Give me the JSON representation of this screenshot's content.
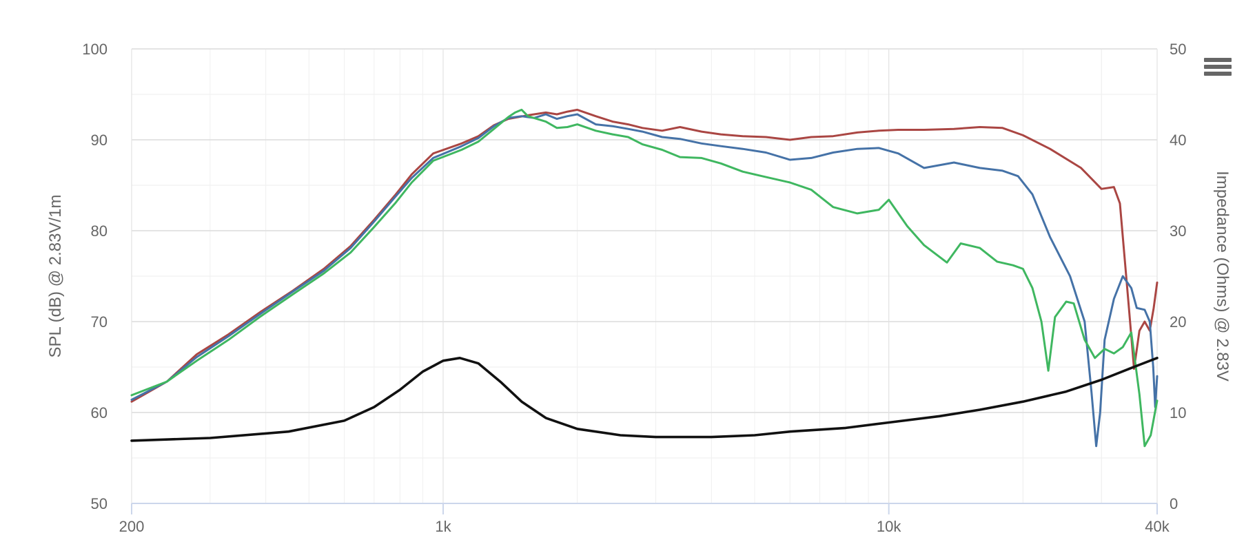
{
  "chart_data": {
    "type": "line",
    "title": "",
    "xlabel": "",
    "ylabel": "SPL (dB) @ 2.83V/1m",
    "y2label": "Impedance (Ohms) @ 2.83V",
    "x_scale": "log",
    "xlim": [
      200,
      40000
    ],
    "ylim": [
      50,
      100
    ],
    "y2lim": [
      0,
      50
    ],
    "x_ticks": [
      {
        "value": 200,
        "label": "200"
      },
      {
        "value": 1000,
        "label": "1k"
      },
      {
        "value": 10000,
        "label": "10k"
      },
      {
        "value": 40000,
        "label": "40k"
      }
    ],
    "y_ticks": [
      50,
      60,
      70,
      80,
      90,
      100
    ],
    "y2_ticks": [
      0,
      10,
      20,
      30,
      40,
      50
    ],
    "grid": true,
    "legend": "none",
    "series": [
      {
        "color": "#aa4643",
        "axis": "left",
        "points": [
          [
            200,
            61.2
          ],
          [
            240,
            63.4
          ],
          [
            280,
            66.4
          ],
          [
            330,
            68.6
          ],
          [
            390,
            71.1
          ],
          [
            460,
            73.4
          ],
          [
            540,
            75.8
          ],
          [
            620,
            78.3
          ],
          [
            700,
            81.2
          ],
          [
            780,
            83.9
          ],
          [
            850,
            86.2
          ],
          [
            950,
            88.5
          ],
          [
            1100,
            89.6
          ],
          [
            1200,
            90.4
          ],
          [
            1300,
            91.6
          ],
          [
            1400,
            92.3
          ],
          [
            1550,
            92.7
          ],
          [
            1700,
            93.0
          ],
          [
            1800,
            92.8
          ],
          [
            1900,
            93.1
          ],
          [
            2000,
            93.3
          ],
          [
            2200,
            92.6
          ],
          [
            2400,
            92.0
          ],
          [
            2600,
            91.7
          ],
          [
            2800,
            91.3
          ],
          [
            3100,
            91.0
          ],
          [
            3400,
            91.4
          ],
          [
            3800,
            90.9
          ],
          [
            4200,
            90.6
          ],
          [
            4700,
            90.4
          ],
          [
            5300,
            90.3
          ],
          [
            6000,
            90.0
          ],
          [
            6700,
            90.3
          ],
          [
            7500,
            90.4
          ],
          [
            8500,
            90.8
          ],
          [
            9500,
            91.0
          ],
          [
            10500,
            91.1
          ],
          [
            12000,
            91.1
          ],
          [
            14000,
            91.2
          ],
          [
            16000,
            91.4
          ],
          [
            18000,
            91.3
          ],
          [
            20000,
            90.5
          ],
          [
            23000,
            89.0
          ],
          [
            27000,
            86.9
          ],
          [
            30000,
            84.6
          ],
          [
            32000,
            84.8
          ],
          [
            33000,
            83.0
          ],
          [
            34500,
            72.0
          ],
          [
            35500,
            64.8
          ],
          [
            36500,
            69.0
          ],
          [
            37500,
            70.0
          ],
          [
            38500,
            69.0
          ],
          [
            39300,
            71.5
          ],
          [
            40000,
            74.3
          ]
        ]
      },
      {
        "color": "#4572a7",
        "axis": "left",
        "points": [
          [
            200,
            61.4
          ],
          [
            240,
            63.4
          ],
          [
            280,
            66.1
          ],
          [
            330,
            68.4
          ],
          [
            390,
            70.9
          ],
          [
            460,
            73.3
          ],
          [
            540,
            75.6
          ],
          [
            620,
            78.1
          ],
          [
            700,
            81.0
          ],
          [
            780,
            83.7
          ],
          [
            850,
            85.8
          ],
          [
            950,
            88.0
          ],
          [
            1100,
            89.3
          ],
          [
            1200,
            90.2
          ],
          [
            1300,
            91.5
          ],
          [
            1400,
            92.4
          ],
          [
            1500,
            92.6
          ],
          [
            1600,
            92.4
          ],
          [
            1700,
            92.8
          ],
          [
            1800,
            92.3
          ],
          [
            1900,
            92.6
          ],
          [
            2000,
            92.8
          ],
          [
            2200,
            91.7
          ],
          [
            2400,
            91.5
          ],
          [
            2600,
            91.2
          ],
          [
            2800,
            90.9
          ],
          [
            3100,
            90.3
          ],
          [
            3400,
            90.1
          ],
          [
            3800,
            89.6
          ],
          [
            4200,
            89.3
          ],
          [
            4700,
            89.0
          ],
          [
            5300,
            88.6
          ],
          [
            6000,
            87.8
          ],
          [
            6700,
            88.0
          ],
          [
            7500,
            88.6
          ],
          [
            8500,
            89.0
          ],
          [
            9500,
            89.1
          ],
          [
            10500,
            88.5
          ],
          [
            12000,
            86.9
          ],
          [
            14000,
            87.5
          ],
          [
            16000,
            86.9
          ],
          [
            18000,
            86.6
          ],
          [
            19500,
            86.0
          ],
          [
            21000,
            84.0
          ],
          [
            23000,
            79.3
          ],
          [
            25500,
            75.0
          ],
          [
            27500,
            70.0
          ],
          [
            28500,
            62.2
          ],
          [
            29200,
            56.3
          ],
          [
            29800,
            60.0
          ],
          [
            30500,
            68.0
          ],
          [
            32000,
            72.5
          ],
          [
            33500,
            75.0
          ],
          [
            35000,
            73.7
          ],
          [
            36000,
            71.5
          ],
          [
            37500,
            71.3
          ],
          [
            38500,
            70.0
          ],
          [
            39200,
            65.0
          ],
          [
            39600,
            60.6
          ],
          [
            40000,
            64.0
          ]
        ]
      },
      {
        "color": "#3fb760",
        "axis": "left",
        "points": [
          [
            200,
            61.9
          ],
          [
            240,
            63.4
          ],
          [
            280,
            65.7
          ],
          [
            330,
            68.0
          ],
          [
            390,
            70.6
          ],
          [
            460,
            73.0
          ],
          [
            540,
            75.3
          ],
          [
            620,
            77.6
          ],
          [
            700,
            80.4
          ],
          [
            780,
            83.0
          ],
          [
            850,
            85.3
          ],
          [
            950,
            87.7
          ],
          [
            1100,
            88.9
          ],
          [
            1200,
            89.8
          ],
          [
            1300,
            91.2
          ],
          [
            1400,
            92.5
          ],
          [
            1450,
            93.0
          ],
          [
            1500,
            93.3
          ],
          [
            1550,
            92.6
          ],
          [
            1700,
            92.0
          ],
          [
            1800,
            91.3
          ],
          [
            1900,
            91.4
          ],
          [
            2000,
            91.7
          ],
          [
            2200,
            91.0
          ],
          [
            2400,
            90.6
          ],
          [
            2600,
            90.3
          ],
          [
            2800,
            89.5
          ],
          [
            3100,
            88.9
          ],
          [
            3400,
            88.1
          ],
          [
            3800,
            88.0
          ],
          [
            4200,
            87.4
          ],
          [
            4700,
            86.5
          ],
          [
            5300,
            85.9
          ],
          [
            6000,
            85.3
          ],
          [
            6700,
            84.5
          ],
          [
            7500,
            82.6
          ],
          [
            8500,
            81.9
          ],
          [
            9500,
            82.3
          ],
          [
            10000,
            83.4
          ],
          [
            11000,
            80.5
          ],
          [
            12000,
            78.4
          ],
          [
            13500,
            76.5
          ],
          [
            14500,
            78.6
          ],
          [
            16000,
            78.1
          ],
          [
            17500,
            76.6
          ],
          [
            19000,
            76.2
          ],
          [
            20000,
            75.8
          ],
          [
            21000,
            73.7
          ],
          [
            22000,
            70.0
          ],
          [
            22800,
            64.6
          ],
          [
            23600,
            70.5
          ],
          [
            25000,
            72.2
          ],
          [
            26000,
            72.0
          ],
          [
            27500,
            68.0
          ],
          [
            29000,
            66.0
          ],
          [
            30500,
            67.0
          ],
          [
            32000,
            66.5
          ],
          [
            33500,
            67.2
          ],
          [
            35000,
            68.8
          ],
          [
            36500,
            62.0
          ],
          [
            37500,
            56.3
          ],
          [
            38700,
            57.5
          ],
          [
            40000,
            61.3
          ]
        ]
      },
      {
        "color": "#111111",
        "axis": "right",
        "points": [
          [
            200,
            6.9
          ],
          [
            300,
            7.2
          ],
          [
            450,
            7.9
          ],
          [
            600,
            9.1
          ],
          [
            700,
            10.6
          ],
          [
            800,
            12.5
          ],
          [
            900,
            14.5
          ],
          [
            1000,
            15.7
          ],
          [
            1090,
            16.0
          ],
          [
            1200,
            15.4
          ],
          [
            1350,
            13.3
          ],
          [
            1500,
            11.2
          ],
          [
            1700,
            9.4
          ],
          [
            2000,
            8.2
          ],
          [
            2500,
            7.5
          ],
          [
            3000,
            7.3
          ],
          [
            4000,
            7.3
          ],
          [
            5000,
            7.5
          ],
          [
            6000,
            7.9
          ],
          [
            8000,
            8.3
          ],
          [
            10000,
            8.9
          ],
          [
            13000,
            9.6
          ],
          [
            16000,
            10.3
          ],
          [
            20000,
            11.2
          ],
          [
            25000,
            12.3
          ],
          [
            30000,
            13.6
          ],
          [
            35000,
            14.9
          ],
          [
            40000,
            16.0
          ]
        ]
      }
    ]
  },
  "ui": {
    "menu_icon": "hamburger-menu-icon"
  }
}
